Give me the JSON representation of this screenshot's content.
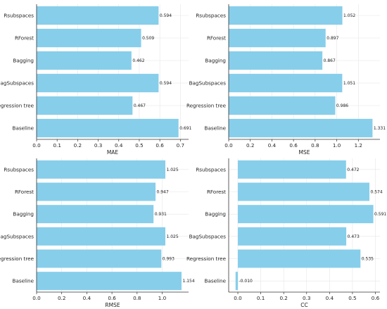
{
  "colors": {
    "bar": "#87ceeb",
    "grid": "#e6e6e6",
    "axis": "#333333"
  },
  "chart_data": [
    {
      "type": "bar",
      "orientation": "horizontal",
      "xlabel": "MAE",
      "categories": [
        "Rsubspaces",
        "RForest",
        "Bagging",
        "BagSubspaces",
        "Regression tree",
        "Baseline"
      ],
      "values": [
        0.594,
        0.509,
        0.462,
        0.594,
        0.467,
        0.691
      ],
      "value_labels": [
        "0.594",
        "0.509",
        "0.462",
        "0.594",
        "0.467",
        "0.691"
      ],
      "xlim": [
        0,
        0.74
      ],
      "xticks": [
        0.0,
        0.1,
        0.2,
        0.3,
        0.4,
        0.5,
        0.6,
        0.7
      ],
      "xtick_labels": [
        "0.0",
        "0.1",
        "0.2",
        "0.3",
        "0.4",
        "0.5",
        "0.6",
        "0.7"
      ],
      "grid": true
    },
    {
      "type": "bar",
      "orientation": "horizontal",
      "xlabel": "MSE",
      "categories": [
        "Rsubspaces",
        "RForest",
        "Bagging",
        "BagSubspaces",
        "Regression tree",
        "Baseline"
      ],
      "values": [
        1.052,
        0.897,
        0.867,
        1.051,
        0.986,
        1.331
      ],
      "value_labels": [
        "1.052",
        "0.897",
        "0.867",
        "1.051",
        "0.986",
        "1.331"
      ],
      "xlim": [
        0,
        1.4
      ],
      "xticks": [
        0.0,
        0.2,
        0.4,
        0.6,
        0.8,
        1.0,
        1.2
      ],
      "xtick_labels": [
        "0.0",
        "0.2",
        "0.4",
        "0.6",
        "0.8",
        "1.0",
        "1.2"
      ],
      "grid": true
    },
    {
      "type": "bar",
      "orientation": "horizontal",
      "xlabel": "RMSE",
      "categories": [
        "Rsubspaces",
        "RForest",
        "Bagging",
        "BagSubspaces",
        "Regression tree",
        "Baseline"
      ],
      "values": [
        1.025,
        0.947,
        0.931,
        1.025,
        0.993,
        1.154
      ],
      "value_labels": [
        "1.025",
        "0.947",
        "0.931",
        "1.025",
        "0.993",
        "1.154"
      ],
      "xlim": [
        0,
        1.21
      ],
      "xticks": [
        0.0,
        0.2,
        0.4,
        0.6,
        0.8,
        1.0
      ],
      "xtick_labels": [
        "0.0",
        "0.2",
        "0.4",
        "0.6",
        "0.8",
        "1.0"
      ],
      "grid": true
    },
    {
      "type": "bar",
      "orientation": "horizontal",
      "xlabel": "CC",
      "categories": [
        "Rsubspaces",
        "RForest",
        "Bagging",
        "BagSubspaces",
        "Regression tree",
        "Baseline"
      ],
      "values": [
        0.472,
        0.574,
        0.591,
        0.473,
        0.535,
        -0.01
      ],
      "value_labels": [
        "0.472",
        "0.574",
        "0.591",
        "0.473",
        "0.535",
        "-0.010"
      ],
      "xlim": [
        -0.04,
        0.62
      ],
      "xticks": [
        0.0,
        0.1,
        0.2,
        0.3,
        0.4,
        0.5,
        0.6
      ],
      "xtick_labels": [
        "0.0",
        "0.1",
        "0.2",
        "0.3",
        "0.4",
        "0.5",
        "0.6"
      ],
      "grid": true
    }
  ]
}
